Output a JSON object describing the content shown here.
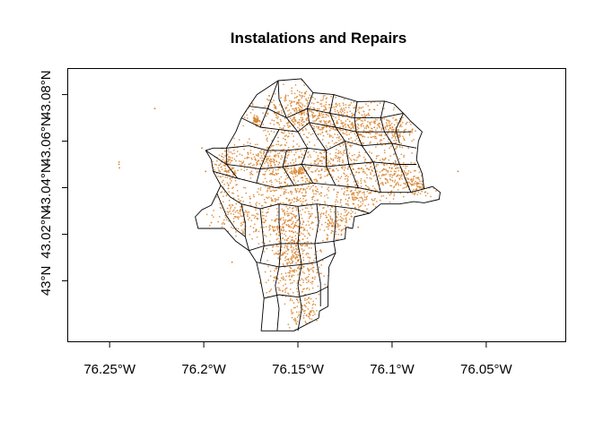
{
  "chart_data": {
    "type": "scatter",
    "title": "Instalations and Repairs",
    "xlabel": "",
    "ylabel": "",
    "xlim": [
      -76.272,
      -76.008
    ],
    "ylim": [
      42.974,
      43.091
    ],
    "x_ticks": [
      {
        "value": -76.25,
        "label": "76.25°W"
      },
      {
        "value": -76.2,
        "label": "76.2°W"
      },
      {
        "value": -76.15,
        "label": "76.15°W"
      },
      {
        "value": -76.1,
        "label": "76.1°W"
      },
      {
        "value": -76.05,
        "label": "76.05°W"
      }
    ],
    "y_ticks": [
      {
        "value": 43.0,
        "label": "43°N"
      },
      {
        "value": 43.02,
        "label": "43.02°N"
      },
      {
        "value": 43.04,
        "label": "43.04°N"
      },
      {
        "value": 43.06,
        "label": "43.06°N"
      },
      {
        "value": 43.08,
        "label": "43.08°N"
      }
    ],
    "point_color": "#d9822b",
    "boundary_color": "#000000",
    "grid": false,
    "legend": "none",
    "outline": [
      [
        -76.1718,
        43.08
      ],
      [
        -76.1605,
        43.086
      ],
      [
        -76.1482,
        43.0868
      ],
      [
        -76.142,
        43.0808
      ],
      [
        -76.131,
        43.08
      ],
      [
        -76.1185,
        43.077
      ],
      [
        -76.104,
        43.0772
      ],
      [
        -76.099,
        43.076
      ],
      [
        -76.094,
        43.072
      ],
      [
        -76.09,
        43.0685
      ],
      [
        -76.084,
        43.064
      ],
      [
        -76.086,
        43.06
      ],
      [
        -76.087,
        43.052
      ],
      [
        -76.084,
        43.046
      ],
      [
        -76.083,
        43.0395
      ],
      [
        -76.0785,
        43.0405
      ],
      [
        -76.0745,
        43.038
      ],
      [
        -76.075,
        43.035
      ],
      [
        -76.083,
        43.0335
      ],
      [
        -76.0885,
        43.034
      ],
      [
        -76.096,
        43.033
      ],
      [
        -76.106,
        43.033
      ],
      [
        -76.112,
        43.029
      ],
      [
        -76.12,
        43.0275
      ],
      [
        -76.121,
        43.0225
      ],
      [
        -76.1245,
        43.023
      ],
      [
        -76.125,
        43.018
      ],
      [
        -76.131,
        43.017
      ],
      [
        -76.13,
        43.012
      ],
      [
        -76.1335,
        43.006
      ],
      [
        -76.134,
        42.9975
      ],
      [
        -76.134,
        42.989
      ],
      [
        -76.1385,
        42.987
      ],
      [
        -76.139,
        42.984
      ],
      [
        -76.152,
        42.9785
      ],
      [
        -76.1695,
        42.9785
      ],
      [
        -76.168,
        42.9925
      ],
      [
        -76.17,
        43.001
      ],
      [
        -76.172,
        43.008
      ],
      [
        -76.176,
        43.013
      ],
      [
        -76.183,
        43.017
      ],
      [
        -76.189,
        43.0225
      ],
      [
        -76.203,
        43.0225
      ],
      [
        -76.2045,
        43.0275
      ],
      [
        -76.201,
        43.0305
      ],
      [
        -76.196,
        43.0325
      ],
      [
        -76.193,
        43.0375
      ],
      [
        -76.191,
        43.041
      ],
      [
        -76.195,
        43.047
      ],
      [
        -76.196,
        43.052
      ],
      [
        -76.199,
        43.056
      ],
      [
        -76.195,
        43.057
      ],
      [
        -76.188,
        43.057
      ],
      [
        -76.183,
        43.064
      ],
      [
        -76.18,
        43.07
      ],
      [
        -76.176,
        43.075
      ],
      [
        -76.1718,
        43.08
      ]
    ],
    "internal_lines": [
      [
        [
          -76.1605,
          43.086
        ],
        [
          -76.16,
          43.078
        ],
        [
          -76.156,
          43.07
        ],
        [
          -76.15,
          43.064
        ]
      ],
      [
        [
          -76.142,
          43.0808
        ],
        [
          -76.145,
          43.074
        ],
        [
          -76.144,
          43.068
        ],
        [
          -76.14,
          43.062
        ]
      ],
      [
        [
          -76.131,
          43.08
        ],
        [
          -76.133,
          43.072
        ],
        [
          -76.13,
          43.066
        ],
        [
          -76.125,
          43.06
        ]
      ],
      [
        [
          -76.1185,
          43.077
        ],
        [
          -76.12,
          43.07
        ],
        [
          -76.119,
          43.064
        ],
        [
          -76.116,
          43.058
        ]
      ],
      [
        [
          -76.104,
          43.0772
        ],
        [
          -76.106,
          43.07
        ],
        [
          -76.104,
          43.064
        ],
        [
          -76.1,
          43.059
        ]
      ],
      [
        [
          -76.094,
          43.072
        ],
        [
          -76.098,
          43.065
        ],
        [
          -76.096,
          43.059
        ]
      ],
      [
        [
          -76.176,
          43.075
        ],
        [
          -76.166,
          43.074
        ],
        [
          -76.156,
          43.07
        ],
        [
          -76.145,
          43.074
        ],
        [
          -76.133,
          43.072
        ],
        [
          -76.12,
          43.07
        ],
        [
          -76.106,
          43.07
        ],
        [
          -76.094,
          43.072
        ]
      ],
      [
        [
          -76.18,
          43.07
        ],
        [
          -76.17,
          43.066
        ],
        [
          -76.16,
          43.065
        ],
        [
          -76.15,
          43.064
        ],
        [
          -76.144,
          43.068
        ],
        [
          -76.13,
          43.066
        ],
        [
          -76.119,
          43.064
        ],
        [
          -76.104,
          43.064
        ],
        [
          -76.09,
          43.064
        ]
      ],
      [
        [
          -76.188,
          43.057
        ],
        [
          -76.176,
          43.058
        ],
        [
          -76.166,
          43.056
        ],
        [
          -76.156,
          43.056
        ],
        [
          -76.145,
          43.057
        ],
        [
          -76.135,
          43.056
        ],
        [
          -76.125,
          43.06
        ],
        [
          -76.116,
          43.058
        ],
        [
          -76.1,
          43.059
        ],
        [
          -76.087,
          43.057
        ]
      ],
      [
        [
          -76.199,
          43.056
        ],
        [
          -76.188,
          43.05
        ],
        [
          -76.178,
          43.049
        ],
        [
          -76.17,
          43.048
        ],
        [
          -76.158,
          43.049
        ],
        [
          -76.148,
          43.05
        ],
        [
          -76.135,
          43.049
        ],
        [
          -76.123,
          43.05
        ],
        [
          -76.11,
          43.051
        ],
        [
          -76.096,
          43.05
        ],
        [
          -76.087,
          43.05
        ]
      ],
      [
        [
          -76.195,
          43.047
        ],
        [
          -76.182,
          43.044
        ],
        [
          -76.172,
          43.042
        ],
        [
          -76.162,
          43.04
        ],
        [
          -76.152,
          43.041
        ],
        [
          -76.142,
          43.042
        ],
        [
          -76.13,
          43.041
        ],
        [
          -76.118,
          43.04
        ],
        [
          -76.106,
          43.038
        ],
        [
          -76.09,
          43.038
        ],
        [
          -76.083,
          43.0395
        ]
      ],
      [
        [
          -76.191,
          43.041
        ],
        [
          -76.186,
          43.036
        ],
        [
          -76.18,
          43.033
        ],
        [
          -76.17,
          43.031
        ],
        [
          -76.16,
          43.033
        ],
        [
          -76.15,
          43.032
        ],
        [
          -76.14,
          43.033
        ],
        [
          -76.13,
          43.032
        ],
        [
          -76.12,
          43.031
        ],
        [
          -76.112,
          43.029
        ]
      ],
      [
        [
          -76.193,
          43.0375
        ],
        [
          -76.188,
          43.028
        ],
        [
          -76.183,
          43.022
        ],
        [
          -76.178,
          43.019
        ]
      ],
      [
        [
          -76.18,
          43.033
        ],
        [
          -76.178,
          43.025
        ],
        [
          -76.178,
          43.019
        ],
        [
          -76.176,
          43.013
        ]
      ],
      [
        [
          -76.17,
          43.031
        ],
        [
          -76.169,
          43.023
        ],
        [
          -76.168,
          43.015
        ],
        [
          -76.17,
          43.008
        ]
      ],
      [
        [
          -76.16,
          43.033
        ],
        [
          -76.16,
          43.025
        ],
        [
          -76.159,
          43.016
        ],
        [
          -76.16,
          43.006
        ],
        [
          -76.162,
          42.998
        ],
        [
          -76.16,
          42.988
        ],
        [
          -76.161,
          42.9785
        ]
      ],
      [
        [
          -76.15,
          43.032
        ],
        [
          -76.149,
          43.025
        ],
        [
          -76.15,
          43.016
        ],
        [
          -76.148,
          43.007
        ],
        [
          -76.15,
          42.998
        ],
        [
          -76.148,
          42.988
        ],
        [
          -76.15,
          42.9785
        ]
      ],
      [
        [
          -76.14,
          43.033
        ],
        [
          -76.139,
          43.025
        ],
        [
          -76.141,
          43.016
        ],
        [
          -76.14,
          43.008
        ],
        [
          -76.138,
          42.999
        ],
        [
          -76.138,
          42.989
        ]
      ],
      [
        [
          -76.13,
          43.032
        ],
        [
          -76.13,
          43.025
        ],
        [
          -76.131,
          43.017
        ]
      ],
      [
        [
          -76.176,
          43.013
        ],
        [
          -76.168,
          43.015
        ],
        [
          -76.159,
          43.016
        ],
        [
          -76.15,
          43.016
        ],
        [
          -76.141,
          43.016
        ],
        [
          -76.131,
          43.017
        ]
      ],
      [
        [
          -76.172,
          43.008
        ],
        [
          -76.16,
          43.006
        ],
        [
          -76.148,
          43.007
        ],
        [
          -76.14,
          43.008
        ],
        [
          -76.13,
          43.012
        ]
      ],
      [
        [
          -76.168,
          42.9925
        ],
        [
          -76.16,
          42.994
        ],
        [
          -76.15,
          42.993
        ],
        [
          -76.14,
          42.995
        ],
        [
          -76.134,
          42.9975
        ]
      ],
      [
        [
          -76.172,
          43.042
        ],
        [
          -76.17,
          43.048
        ],
        [
          -76.166,
          43.056
        ],
        [
          -76.16,
          43.065
        ]
      ],
      [
        [
          -76.152,
          43.041
        ],
        [
          -76.158,
          43.049
        ],
        [
          -76.156,
          43.056
        ]
      ],
      [
        [
          -76.142,
          43.042
        ],
        [
          -76.148,
          43.05
        ],
        [
          -76.145,
          43.057
        ],
        [
          -76.15,
          43.064
        ]
      ],
      [
        [
          -76.13,
          43.041
        ],
        [
          -76.135,
          43.049
        ],
        [
          -76.135,
          43.056
        ],
        [
          -76.14,
          43.062
        ]
      ],
      [
        [
          -76.118,
          43.04
        ],
        [
          -76.123,
          43.05
        ],
        [
          -76.125,
          43.06
        ]
      ],
      [
        [
          -76.106,
          43.038
        ],
        [
          -76.11,
          43.051
        ],
        [
          -76.116,
          43.058
        ]
      ],
      [
        [
          -76.09,
          43.038
        ],
        [
          -76.096,
          43.05
        ],
        [
          -76.1,
          43.059
        ]
      ],
      [
        [
          -76.182,
          43.044
        ],
        [
          -76.188,
          43.05
        ],
        [
          -76.188,
          43.057
        ]
      ],
      [
        [
          -76.17,
          43.066
        ],
        [
          -76.166,
          43.074
        ],
        [
          -76.1605,
          43.086
        ]
      ]
    ],
    "clusters": [
      {
        "x": -76.148,
        "y": 43.072,
        "sx": 0.015,
        "sy": 0.008,
        "n": 420
      },
      {
        "x": -76.12,
        "y": 43.068,
        "sx": 0.013,
        "sy": 0.006,
        "n": 330
      },
      {
        "x": -76.098,
        "y": 43.064,
        "sx": 0.007,
        "sy": 0.005,
        "n": 130
      },
      {
        "x": -76.13,
        "y": 43.05,
        "sx": 0.015,
        "sy": 0.006,
        "n": 280
      },
      {
        "x": -76.165,
        "y": 43.052,
        "sx": 0.012,
        "sy": 0.005,
        "n": 240
      },
      {
        "x": -76.188,
        "y": 43.048,
        "sx": 0.006,
        "sy": 0.006,
        "n": 140
      },
      {
        "x": -76.1,
        "y": 43.046,
        "sx": 0.011,
        "sy": 0.006,
        "n": 200
      },
      {
        "x": -76.086,
        "y": 43.04,
        "sx": 0.005,
        "sy": 0.003,
        "n": 70
      },
      {
        "x": -76.155,
        "y": 43.038,
        "sx": 0.015,
        "sy": 0.006,
        "n": 260
      },
      {
        "x": -76.118,
        "y": 43.036,
        "sx": 0.009,
        "sy": 0.0045,
        "n": 150
      },
      {
        "x": -76.182,
        "y": 43.028,
        "sx": 0.008,
        "sy": 0.005,
        "n": 130
      },
      {
        "x": -76.155,
        "y": 43.025,
        "sx": 0.011,
        "sy": 0.0055,
        "n": 220
      },
      {
        "x": -76.13,
        "y": 43.025,
        "sx": 0.006,
        "sy": 0.005,
        "n": 110
      },
      {
        "x": -76.153,
        "y": 43.014,
        "sx": 0.008,
        "sy": 0.005,
        "n": 170
      },
      {
        "x": -76.152,
        "y": 43.002,
        "sx": 0.009,
        "sy": 0.006,
        "n": 180
      },
      {
        "x": -76.147,
        "y": 42.987,
        "sx": 0.005,
        "sy": 0.0045,
        "n": 90
      },
      {
        "x": -76.172,
        "y": 43.069,
        "sx": 0.001,
        "sy": 0.0012,
        "n": 45
      },
      {
        "x": -76.15,
        "y": 43.047,
        "sx": 0.003,
        "sy": 0.0008,
        "n": 50
      }
    ],
    "outliers": [
      [
        -76.245,
        43.05
      ],
      [
        -76.245,
        43.051
      ],
      [
        -76.2448,
        43.0485
      ],
      [
        -76.226,
        43.074
      ],
      [
        -76.185,
        43.008
      ],
      [
        -76.199,
        43.047
      ],
      [
        -76.065,
        43.047
      ],
      [
        -76.201,
        43.057
      ],
      [
        -76.196,
        43.025
      ],
      [
        -76.17,
        42.999
      ],
      [
        -76.14,
        42.983
      ],
      [
        -76.118,
        43.023
      ]
    ]
  }
}
